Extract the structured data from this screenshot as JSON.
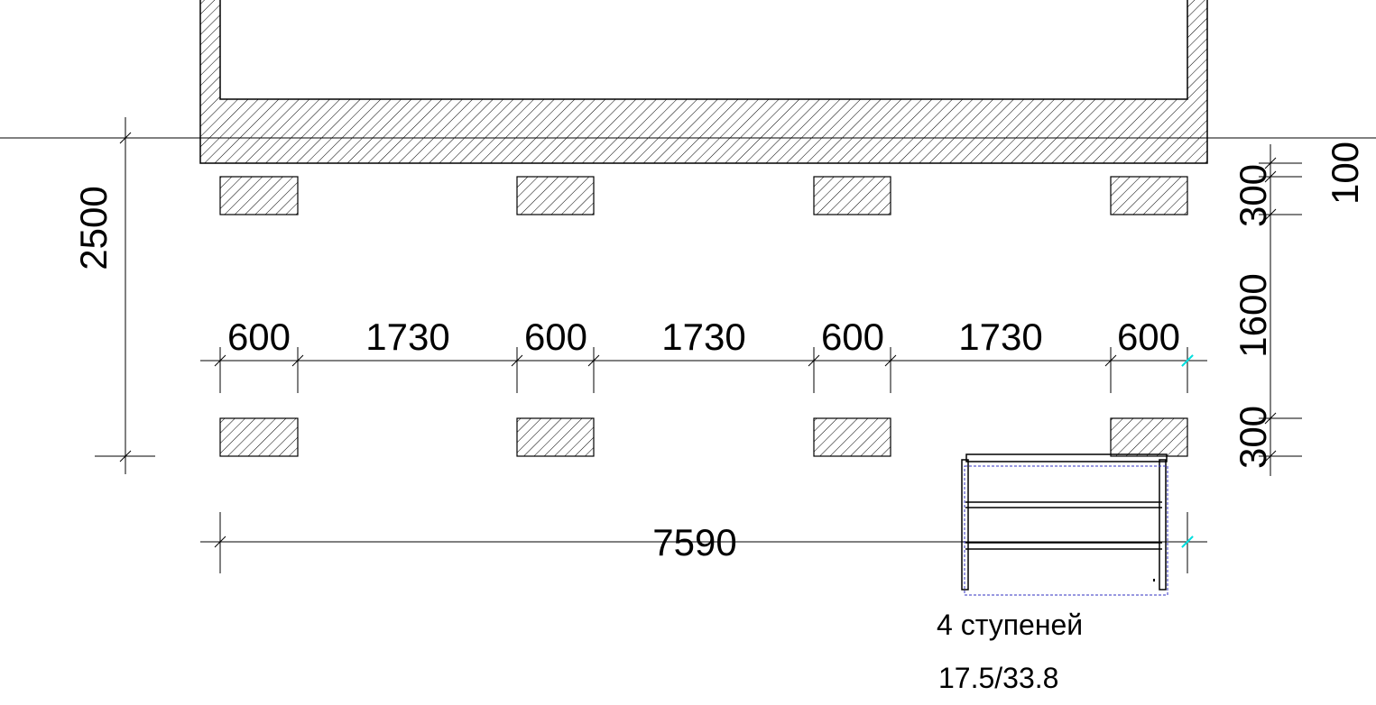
{
  "colors": {
    "line": "#000000",
    "selection": "#3030c0",
    "snap": "#00e0e0"
  },
  "dimensions": {
    "horizontal_chain": [
      "600",
      "1730",
      "600",
      "1730",
      "600",
      "1730",
      "600"
    ],
    "overall_width": "7590",
    "left_height": "2500",
    "right_chain": [
      "300",
      "1600",
      "300"
    ],
    "right_top": "100"
  },
  "stair": {
    "label": "4 ступеней",
    "ratio": "17.5/33.8"
  }
}
